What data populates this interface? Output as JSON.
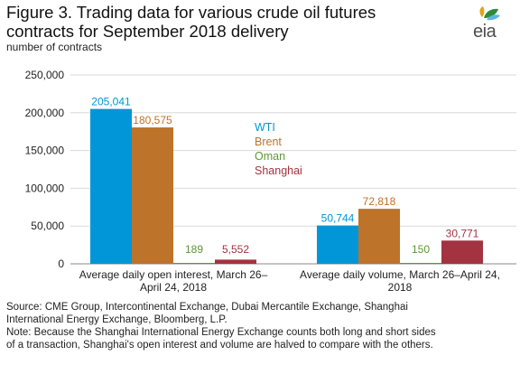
{
  "title_line1": "Figure 3. Trading data for various crude oil futures",
  "title_line2": "contracts for September 2018 delivery",
  "logo": "eia",
  "colors": {
    "WTI": "#0096d7",
    "Brent": "#bd732a",
    "Oman": "#5d9732",
    "Shanghai": "#a33340",
    "gridline": "#d9d9d9",
    "axis": "#888888"
  },
  "chart_data": {
    "type": "bar",
    "ylabel": "number of contracts",
    "ylim": [
      0,
      250000
    ],
    "yticks": [
      0,
      50000,
      100000,
      150000,
      200000,
      250000
    ],
    "ytick_labels": [
      "0",
      "50,000",
      "100,000",
      "150,000",
      "200,000",
      "250,000"
    ],
    "grid": true,
    "legend_position": "center",
    "categories": [
      [
        "Average daily open interest, March 26–",
        "April 24, 2018"
      ],
      [
        "Average daily volume, March 26–April 24,",
        "2018"
      ]
    ],
    "series": [
      {
        "name": "WTI",
        "values": [
          205041,
          50744
        ],
        "labels": [
          "205,041",
          "50,744"
        ]
      },
      {
        "name": "Brent",
        "values": [
          180575,
          72818
        ],
        "labels": [
          "180,575",
          "72,818"
        ]
      },
      {
        "name": "Oman",
        "values": [
          189,
          150
        ],
        "labels": [
          "189",
          "150"
        ]
      },
      {
        "name": "Shanghai",
        "values": [
          5552,
          30771
        ],
        "labels": [
          "5,552",
          "30,771"
        ]
      }
    ]
  },
  "notes": {
    "source_line1": "Source: CME Group, Intercontinental Exchange, Dubai Mercantile Exchange, Shanghai",
    "source_line2": "International Energy Exchange, Bloomberg, L.P.",
    "note_line1": "Note: Because the Shanghai International Energy Exchange counts both long and short sides",
    "note_line2": "of a transaction, Shanghai's open interest and volume are halved to compare with the others."
  }
}
